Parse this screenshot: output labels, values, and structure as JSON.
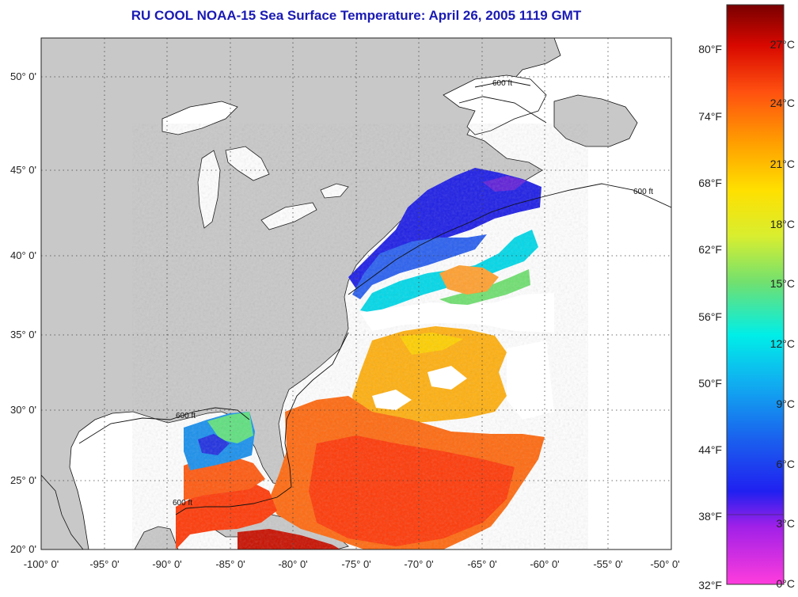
{
  "title": "RU COOL  NOAA-15  Sea Surface Temperature:  April 26, 2005 1119 GMT",
  "map": {
    "lon_range": [
      -100,
      -50
    ],
    "lat_range": [
      20,
      52
    ],
    "lat_labels": [
      "50° 0'",
      "45° 0'",
      "40° 0'",
      "35° 0'",
      "30° 0'",
      "25° 0'",
      "20° 0'"
    ],
    "lon_labels": [
      "-100° 0'",
      "-95° 0'",
      "-90° 0'",
      "-85° 0'",
      "-80° 0'",
      "-75° 0'",
      "-70° 0'",
      "-65° 0'",
      "-60° 0'",
      "-55° 0'",
      "-50° 0'"
    ],
    "contour_label": "600 ft",
    "colors": {
      "land": "#c8c8c8",
      "ocean_nodata": "#ffffff",
      "grid": "#555555"
    }
  },
  "colorbar": {
    "fahrenheit_labels": [
      "80°F",
      "74°F",
      "68°F",
      "62°F",
      "56°F",
      "50°F",
      "44°F",
      "38°F",
      "32°F"
    ],
    "celsius_labels": [
      "27°C",
      "24°C",
      "21°C",
      "18°C",
      "15°C",
      "12°C",
      "9°C",
      "6°C",
      "3°C",
      "0°C"
    ],
    "colors": [
      "#ff28d8",
      "#7a20e0",
      "#1212ee",
      "#1f7ff0",
      "#00e8f0",
      "#60e080",
      "#d0ee30",
      "#ffee00",
      "#ffa000",
      "#ff5010",
      "#e81000",
      "#a00000",
      "#7a0000"
    ]
  }
}
